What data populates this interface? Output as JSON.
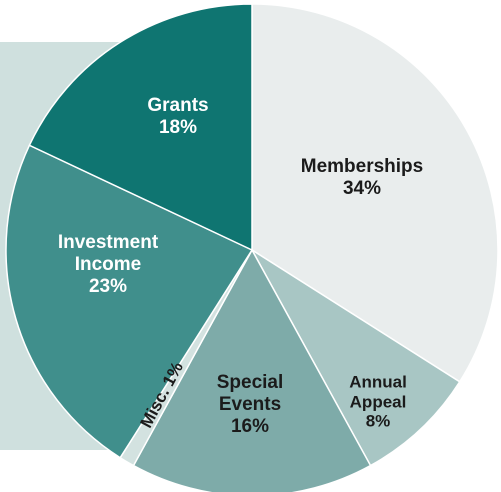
{
  "chart_data": {
    "type": "pie",
    "categories": [
      "Memberships",
      "Annual Appeal",
      "Special Events",
      "Misc.",
      "Investment Income",
      "Grants"
    ],
    "values": [
      34,
      8,
      16,
      1,
      23,
      18
    ],
    "value_labels": [
      "34%",
      "8%",
      "16%",
      "1%",
      "23%",
      "18%"
    ],
    "colors": [
      "#e9eded",
      "#a8c6c4",
      "#7eaba9",
      "#d3e2e0",
      "#408f8c",
      "#0f7571"
    ]
  }
}
